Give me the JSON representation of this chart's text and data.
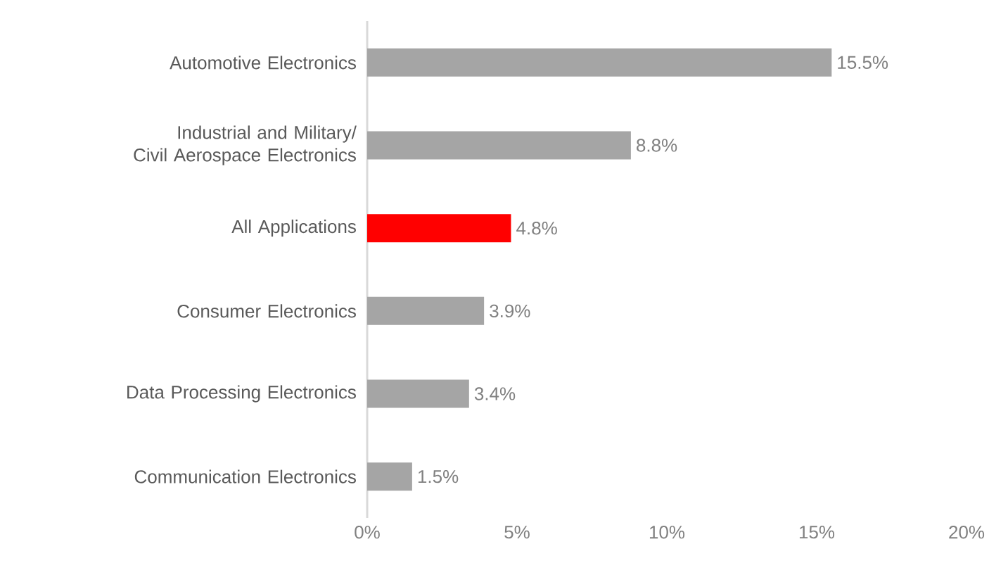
{
  "chart_data": {
    "type": "bar",
    "orientation": "horizontal",
    "categories": [
      "Automotive Electronics",
      "Industrial and Military/\nCivil Aerospace Electronics",
      "All Applications",
      "Consumer Electronics",
      "Data Processing Electronics",
      "Communication Electronics"
    ],
    "values": [
      15.5,
      8.8,
      4.8,
      3.9,
      3.4,
      1.5
    ],
    "colors": [
      "#a5a5a5",
      "#a5a5a5",
      "#ff0000",
      "#a5a5a5",
      "#a5a5a5",
      "#a5a5a5"
    ],
    "value_labels": [
      "15.5%",
      "8.8%",
      "4.8%",
      "3.9%",
      "3.4%",
      "1.5%"
    ],
    "xlim": [
      0,
      20
    ],
    "xticks": [
      {
        "value": 0,
        "label": "0%"
      },
      {
        "value": 5,
        "label": "5%"
      },
      {
        "value": 10,
        "label": "10%"
      },
      {
        "value": 15,
        "label": "15%"
      },
      {
        "value": 20,
        "label": "20%"
      }
    ],
    "grid": false
  }
}
